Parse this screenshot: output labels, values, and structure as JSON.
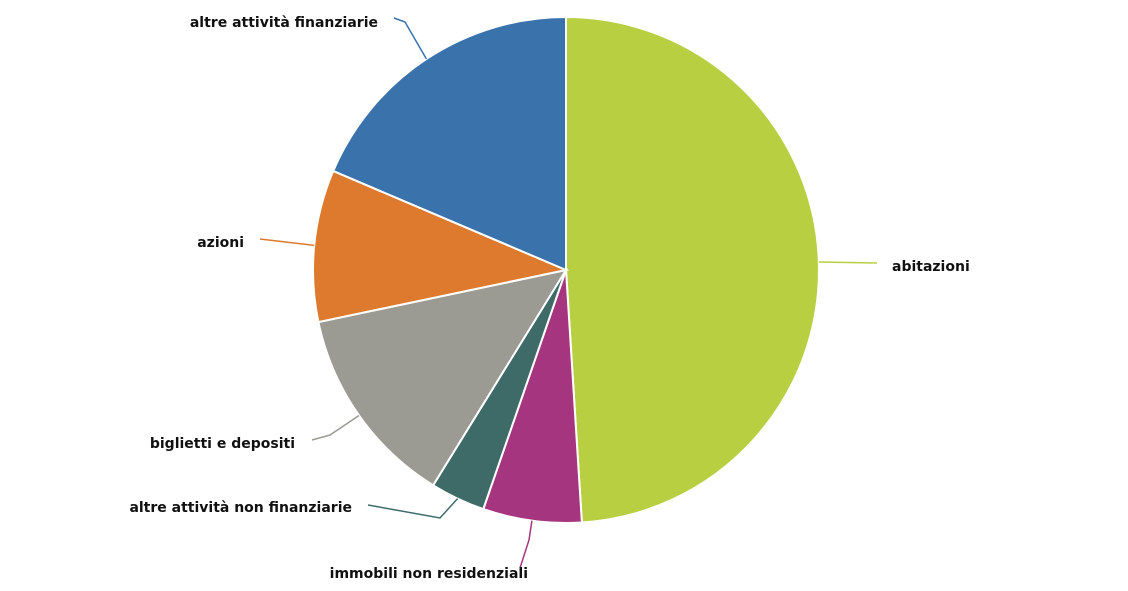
{
  "chart_data": {
    "type": "pie",
    "categories": [
      "abitazioni",
      "immobili non residenziali",
      "altre attività non finanziarie",
      "biglietti e depositi",
      "azioni",
      "altre attività finanziarie"
    ],
    "values": [
      49,
      6.3,
      3.5,
      12.9,
      9.7,
      18.6
    ],
    "colors": [
      "#b9cf42",
      "#a5357e",
      "#3e6b68",
      "#9c9b93",
      "#dd7a2d",
      "#3a72ac"
    ]
  }
}
